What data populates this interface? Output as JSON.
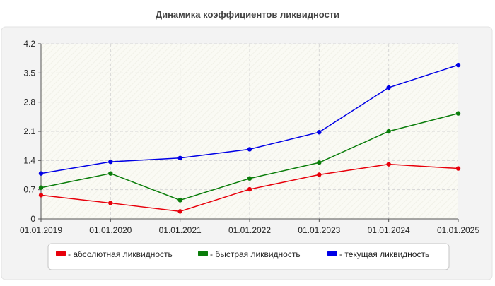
{
  "chart_data": {
    "type": "line",
    "title": "Динамика коэффициентов ликвидности",
    "xlabel": "",
    "ylabel": "",
    "categories": [
      "01.01.2019",
      "01.01.2020",
      "01.01.2021",
      "01.01.2022",
      "01.01.2023",
      "01.01.2024",
      "01.01.2025"
    ],
    "yticks": [
      "0",
      "0.7",
      "1.4",
      "2.1",
      "2.8",
      "3.5",
      "4.2"
    ],
    "ylim": [
      0,
      4.2
    ],
    "grid": true,
    "legend_position": "bottom",
    "series": [
      {
        "name": "- абсолютная ликвидность",
        "color": "#e8000b",
        "values": [
          0.57,
          0.38,
          0.18,
          0.71,
          1.06,
          1.31,
          1.21
        ]
      },
      {
        "name": "- быстрая ликвидность",
        "color": "#0a7d0a",
        "values": [
          0.75,
          1.09,
          0.45,
          0.97,
          1.35,
          2.1,
          2.53
        ]
      },
      {
        "name": "- текущая ликвидность",
        "color": "#0000e6",
        "values": [
          1.09,
          1.37,
          1.46,
          1.67,
          2.08,
          3.15,
          3.69
        ]
      }
    ]
  }
}
